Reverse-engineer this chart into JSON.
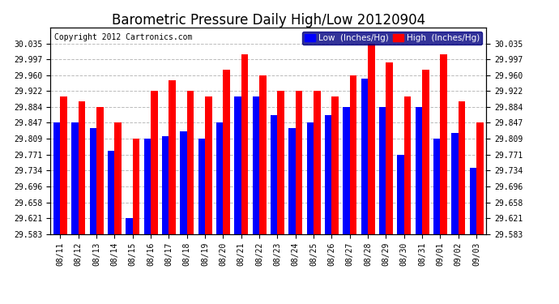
{
  "title": "Barometric Pressure Daily High/Low 20120904",
  "copyright": "Copyright 2012 Cartronics.com",
  "legend_low": "Low  (Inches/Hg)",
  "legend_high": "High  (Inches/Hg)",
  "dates": [
    "08/11",
    "08/12",
    "08/13",
    "08/14",
    "08/15",
    "08/16",
    "08/17",
    "08/18",
    "08/19",
    "08/20",
    "08/21",
    "08/22",
    "08/23",
    "08/24",
    "08/25",
    "08/26",
    "08/27",
    "08/28",
    "08/29",
    "08/30",
    "08/31",
    "09/01",
    "09/02",
    "09/03"
  ],
  "low_values": [
    29.847,
    29.847,
    29.834,
    29.78,
    29.621,
    29.809,
    29.815,
    29.827,
    29.809,
    29.847,
    29.909,
    29.909,
    29.865,
    29.834,
    29.847,
    29.865,
    29.884,
    29.952,
    29.884,
    29.771,
    29.884,
    29.809,
    29.822,
    29.74
  ],
  "high_values": [
    29.909,
    29.897,
    29.884,
    29.847,
    29.809,
    29.922,
    29.947,
    29.922,
    29.909,
    29.972,
    30.01,
    29.96,
    29.922,
    29.922,
    29.922,
    29.909,
    29.96,
    30.035,
    29.99,
    29.909,
    29.972,
    30.01,
    29.897,
    29.847
  ],
  "ylim_min": 29.583,
  "ylim_max": 30.073,
  "yticks": [
    29.583,
    29.621,
    29.658,
    29.696,
    29.734,
    29.771,
    29.809,
    29.847,
    29.884,
    29.922,
    29.96,
    29.997,
    30.035
  ],
  "bar_color_low": "#0000ff",
  "bar_color_high": "#ff0000",
  "background_color": "#ffffff",
  "plot_bg_color": "#ffffff",
  "grid_color": "#bbbbbb",
  "title_fontsize": 12,
  "copyright_fontsize": 7,
  "tick_fontsize": 7,
  "legend_fontsize": 7.5
}
